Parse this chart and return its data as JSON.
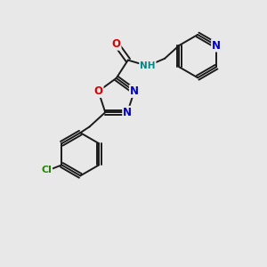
{
  "background_color": "#e8e8e8",
  "bond_color": "#1a1a1a",
  "atom_colors": {
    "O": "#dd0000",
    "N": "#0000cc",
    "Cl": "#228800",
    "NH": "#008888",
    "C": "#1a1a1a"
  },
  "figure_size": [
    3.0,
    3.0
  ],
  "dpi": 100,
  "lw": 1.4
}
